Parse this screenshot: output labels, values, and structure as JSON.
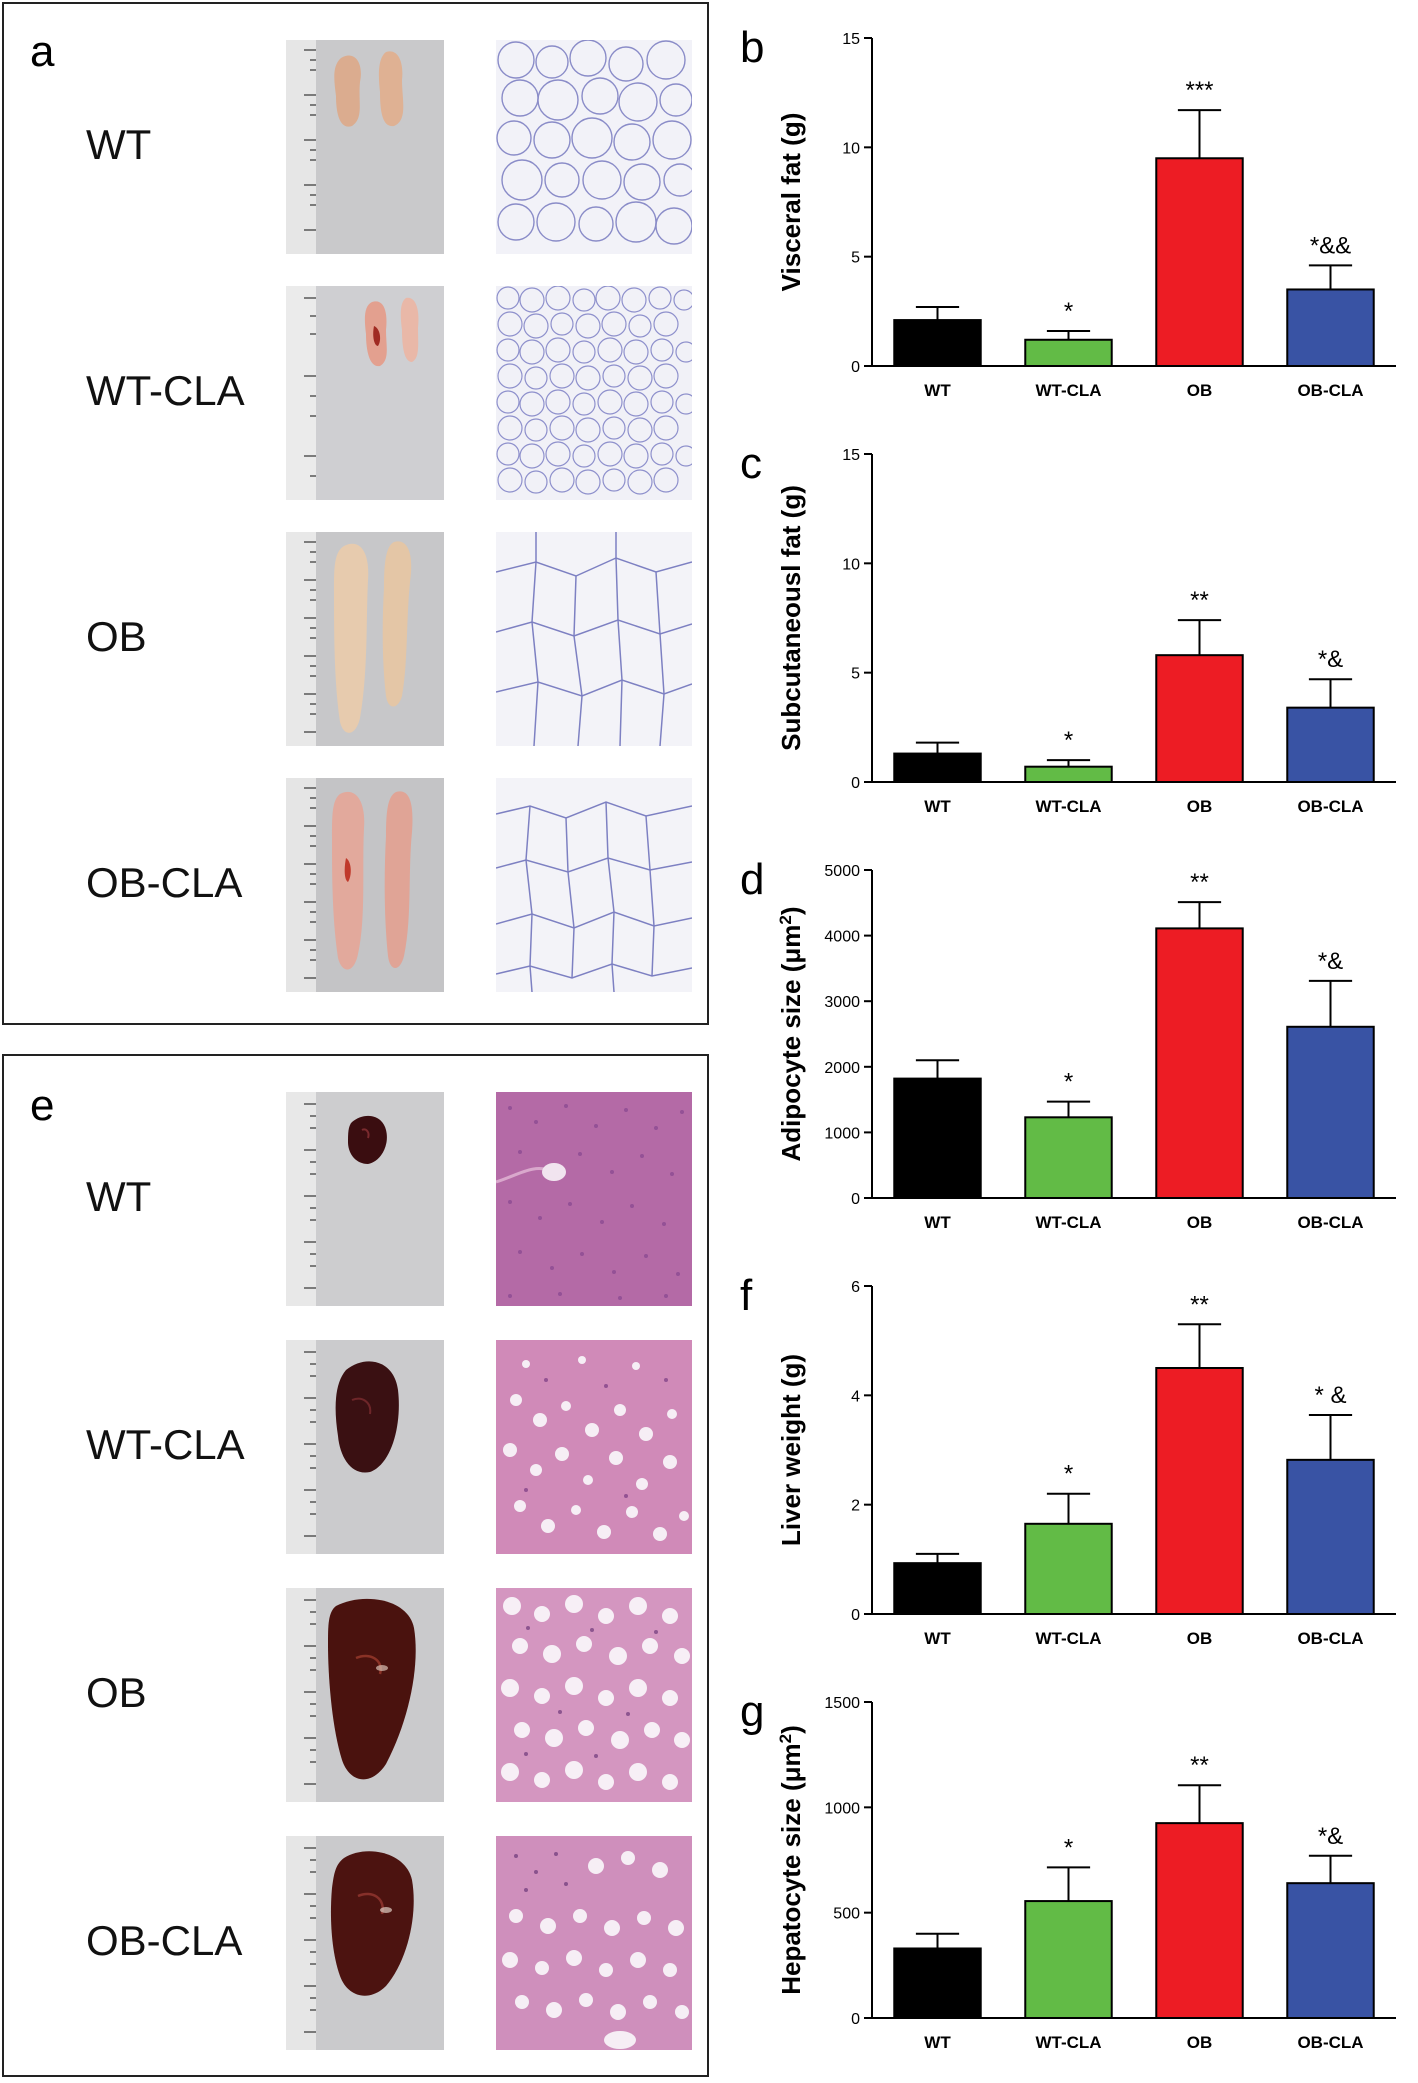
{
  "figure": {
    "groups": [
      "WT",
      "WT-CLA",
      "OB",
      "OB-CLA"
    ],
    "colors": {
      "WT": "#000000",
      "WT-CLA": "#62bb46",
      "OB": "#ed1c24",
      "OB-CLA": "#3953a4"
    },
    "panel_a": {
      "letter": "a",
      "rows": [
        {
          "label": "WT"
        },
        {
          "label": "WT-CLA"
        },
        {
          "label": "OB"
        },
        {
          "label": "OB-CLA"
        }
      ]
    },
    "panel_e": {
      "letter": "e",
      "rows": [
        {
          "label": "WT"
        },
        {
          "label": "WT-CLA"
        },
        {
          "label": "OB"
        },
        {
          "label": "OB-CLA"
        }
      ]
    }
  },
  "chart_data": [
    {
      "id": "b",
      "letter": "b",
      "type": "bar",
      "ylabel": "Visceral fat (g)",
      "categories": [
        "WT",
        "WT-CLA",
        "OB",
        "OB-CLA"
      ],
      "values": [
        2.1,
        1.2,
        9.5,
        3.5
      ],
      "errors": [
        0.6,
        0.4,
        2.2,
        1.1
      ],
      "annotations": [
        "",
        "*",
        "***",
        "*&&"
      ],
      "ylim": [
        0,
        15
      ],
      "yticks": [
        0,
        5,
        10,
        15
      ]
    },
    {
      "id": "c",
      "letter": "c",
      "type": "bar",
      "ylabel": "Subcutaneousl fat (g)",
      "categories": [
        "WT",
        "WT-CLA",
        "OB",
        "OB-CLA"
      ],
      "values": [
        1.3,
        0.7,
        5.8,
        3.4
      ],
      "errors": [
        0.5,
        0.3,
        1.6,
        1.3
      ],
      "annotations": [
        "",
        "*",
        "**",
        "*&"
      ],
      "ylim": [
        0,
        15
      ],
      "yticks": [
        0,
        5,
        10,
        15
      ]
    },
    {
      "id": "d",
      "letter": "d",
      "type": "bar",
      "ylabel": "Adipocyte size (μm",
      "ylabel_sup": "2",
      "ylabel_end": ")",
      "categories": [
        "WT",
        "WT-CLA",
        "OB",
        "OB-CLA"
      ],
      "values": [
        1820,
        1230,
        4110,
        2610
      ],
      "errors": [
        280,
        240,
        400,
        700
      ],
      "annotations": [
        "",
        "*",
        "**",
        "*&"
      ],
      "ylim": [
        0,
        5000
      ],
      "yticks": [
        0,
        1000,
        2000,
        3000,
        4000,
        5000
      ]
    },
    {
      "id": "f",
      "letter": "f",
      "type": "bar",
      "ylabel": "Liver weight (g)",
      "categories": [
        "WT",
        "WT-CLA",
        "OB",
        "OB-CLA"
      ],
      "values": [
        0.93,
        1.65,
        4.5,
        2.82
      ],
      "errors": [
        0.17,
        0.55,
        0.8,
        0.82
      ],
      "annotations": [
        "",
        "*",
        "**",
        "* &"
      ],
      "ylim": [
        0,
        6
      ],
      "yticks": [
        0,
        2,
        4,
        6
      ]
    },
    {
      "id": "g",
      "letter": "g",
      "type": "bar",
      "ylabel": "Hepatocyte size (μm",
      "ylabel_sup": "2",
      "ylabel_end": ")",
      "categories": [
        "WT",
        "WT-CLA",
        "OB",
        "OB-CLA"
      ],
      "values": [
        330,
        555,
        925,
        640
      ],
      "errors": [
        70,
        160,
        180,
        130
      ],
      "annotations": [
        "",
        "*",
        "**",
        "*&"
      ],
      "ylim": [
        0,
        1500
      ],
      "yticks": [
        0,
        500,
        1000,
        1500
      ]
    }
  ]
}
